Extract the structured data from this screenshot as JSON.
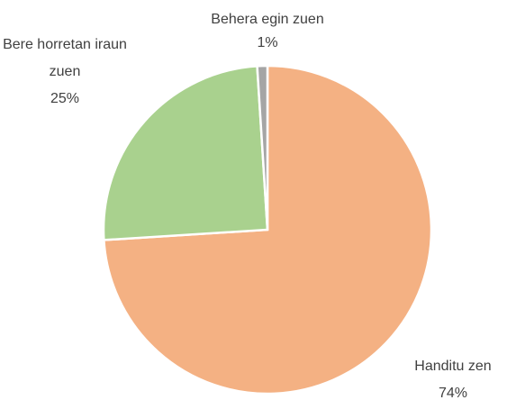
{
  "chart_data": {
    "type": "pie",
    "categories": [
      "Handitu zen",
      "Bere horretan iraun zuen",
      "Behera egin zuen"
    ],
    "values": [
      74,
      25,
      1
    ],
    "value_labels": [
      "74%",
      "25%",
      "1%"
    ],
    "colors": [
      "#f4b183",
      "#a9d18e",
      "#a5a5a5"
    ]
  }
}
